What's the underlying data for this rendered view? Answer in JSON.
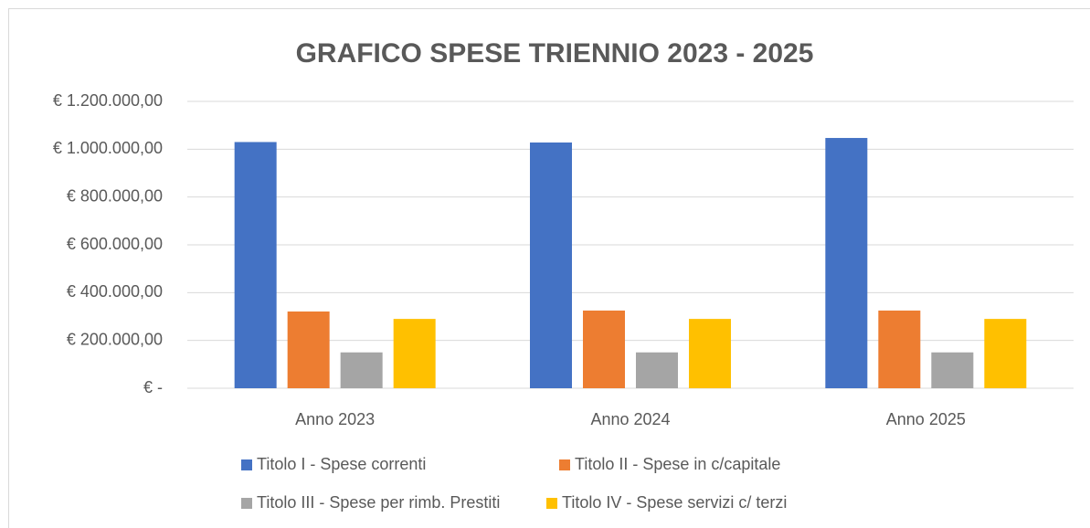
{
  "chart_data": {
    "type": "bar",
    "title": "GRAFICO SPESE TRIENNIO 2023 - 2025",
    "categories": [
      "Anno 2023",
      "Anno 2024",
      "Anno 2025"
    ],
    "series": [
      {
        "name": "Titolo I - Spese correnti",
        "color": "#4472c4",
        "values": [
          1030000,
          1028000,
          1047000
        ]
      },
      {
        "name": "Titolo II - Spese in c/capitale",
        "color": "#ed7d31",
        "values": [
          321000,
          325000,
          325000
        ]
      },
      {
        "name": "Titolo III - Spese per rimb. Prestiti",
        "color": "#a5a5a5",
        "values": [
          150000,
          150000,
          150000
        ]
      },
      {
        "name": "Titolo IV - Spese servizi c/ terzi",
        "color": "#ffc000",
        "values": [
          290000,
          290000,
          290000
        ]
      }
    ],
    "ylim": [
      0,
      1200000
    ],
    "yticks": [
      {
        "value": 0,
        "label": "€ -"
      },
      {
        "value": 200000,
        "label": "€ 200.000,00"
      },
      {
        "value": 400000,
        "label": "€ 400.000,00"
      },
      {
        "value": 600000,
        "label": "€ 600.000,00"
      },
      {
        "value": 800000,
        "label": "€ 800.000,00"
      },
      {
        "value": 1000000,
        "label": "€ 1.000.000,00"
      },
      {
        "value": 1200000,
        "label": "€ 1.200.000,00"
      }
    ],
    "grid": true,
    "legend": "bottom"
  }
}
